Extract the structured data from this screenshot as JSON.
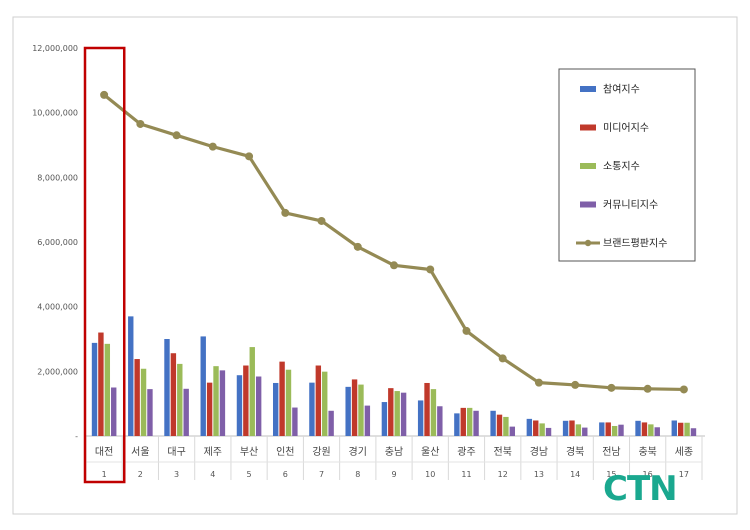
{
  "chart_data": {
    "type": "bar",
    "categories": [
      "대전",
      "서울",
      "대구",
      "제주",
      "부산",
      "인천",
      "강원",
      "경기",
      "충남",
      "울산",
      "광주",
      "전북",
      "경남",
      "경북",
      "전남",
      "충북",
      "세종"
    ],
    "category_index": [
      "1",
      "2",
      "3",
      "4",
      "5",
      "6",
      "7",
      "8",
      "9",
      "10",
      "11",
      "12",
      "13",
      "14",
      "15",
      "16",
      "17"
    ],
    "series": [
      {
        "name": "참여지수",
        "type": "bar",
        "color": "#4472c4",
        "values": [
          2880000,
          3700000,
          3000000,
          3080000,
          1880000,
          1640000,
          1650000,
          1520000,
          1050000,
          1100000,
          700000,
          780000,
          530000,
          470000,
          420000,
          470000,
          480000
        ]
      },
      {
        "name": "미디어지수",
        "type": "bar",
        "color": "#c0392b",
        "values": [
          3200000,
          2380000,
          2560000,
          1650000,
          2180000,
          2300000,
          2180000,
          1750000,
          1480000,
          1640000,
          870000,
          660000,
          480000,
          480000,
          420000,
          420000,
          410000
        ]
      },
      {
        "name": "소통지수",
        "type": "bar",
        "color": "#9bbb59",
        "values": [
          2850000,
          2080000,
          2230000,
          2160000,
          2750000,
          2050000,
          1990000,
          1590000,
          1390000,
          1450000,
          870000,
          590000,
          390000,
          360000,
          310000,
          360000,
          410000
        ]
      },
      {
        "name": "커뮤니티지수",
        "type": "bar",
        "color": "#7f5fa8",
        "values": [
          1500000,
          1450000,
          1460000,
          2030000,
          1840000,
          880000,
          780000,
          940000,
          1340000,
          920000,
          780000,
          290000,
          250000,
          260000,
          350000,
          270000,
          240000
        ]
      },
      {
        "name": "브랜드평판지수",
        "type": "line",
        "color": "#948a54",
        "values": [
          10550000,
          9650000,
          9300000,
          8950000,
          8650000,
          6900000,
          6650000,
          5850000,
          5280000,
          5150000,
          3250000,
          2400000,
          1650000,
          1580000,
          1490000,
          1460000,
          1440000
        ]
      }
    ],
    "y_ticks": [
      "12,000,000",
      "10,000,000",
      "8,000,000",
      "6,000,000",
      "4,000,000",
      "2,000,000",
      "-"
    ],
    "ylim": [
      0,
      12000000
    ],
    "highlight_category": "대전",
    "highlight_color": "#c00000",
    "legend_position": "top-right",
    "grid": false
  },
  "watermark": "CTN",
  "watermark_color": "#1aa88f"
}
